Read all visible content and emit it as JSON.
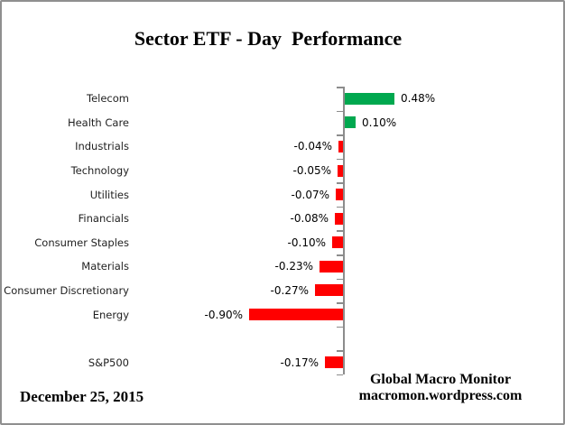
{
  "header": {
    "title": "Sector ETF - Day  Performance"
  },
  "date_label": "December 25, 2015",
  "footer": {
    "line1": "Global Macro Monitor",
    "line2": "macromon.wordpress.com"
  },
  "colors": {
    "positive_bar": "#00A84F",
    "negative_bar": "#FF0000",
    "axis": "#8C8C8C",
    "border": "#8F8F8F",
    "text": "#000000"
  },
  "chart_data": {
    "type": "bar",
    "orientation": "horizontal",
    "title": "Sector ETF - Day  Performance",
    "xlabel": "",
    "ylabel": "",
    "unit": "%",
    "grid": false,
    "legend": false,
    "value_labels_shown": true,
    "rows": [
      {
        "category": "Telecom",
        "value": 0.48,
        "label": "0.48%"
      },
      {
        "category": "Health Care",
        "value": 0.1,
        "label": "0.10%"
      },
      {
        "category": "Industrials",
        "value": -0.04,
        "label": "-0.04%"
      },
      {
        "category": "Technology",
        "value": -0.05,
        "label": "-0.05%"
      },
      {
        "category": "Utilities",
        "value": -0.07,
        "label": "-0.07%"
      },
      {
        "category": "Financials",
        "value": -0.08,
        "label": "-0.08%"
      },
      {
        "category": "Consumer Staples",
        "value": -0.1,
        "label": "-0.10%"
      },
      {
        "category": "Materials",
        "value": -0.23,
        "label": "-0.23%"
      },
      {
        "category": "Consumer Discretionary",
        "value": -0.27,
        "label": "-0.27%"
      },
      {
        "category": "Energy",
        "value": -0.9,
        "label": "-0.90%"
      },
      {
        "category": "",
        "value": null,
        "label": ""
      },
      {
        "category": "S&P500",
        "value": -0.17,
        "label": "-0.17%"
      }
    ]
  }
}
